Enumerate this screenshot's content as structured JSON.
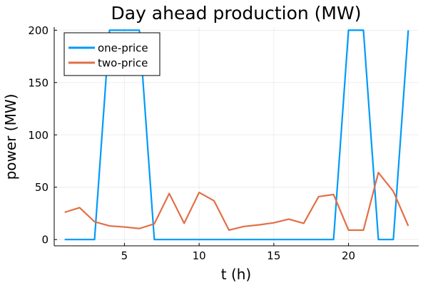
{
  "chart_data": {
    "type": "line",
    "title": "Day ahead production (MW)",
    "xlabel": "t (h)",
    "ylabel": "power (MW)",
    "xlim": [
      0.3,
      24.7
    ],
    "ylim": [
      -6,
      203
    ],
    "xticks": [
      5,
      10,
      15,
      20
    ],
    "yticks": [
      0,
      50,
      100,
      150,
      200
    ],
    "grid": true,
    "legend_position": "top-left",
    "x": [
      1,
      2,
      3,
      4,
      5,
      6,
      7,
      8,
      9,
      10,
      11,
      12,
      13,
      14,
      15,
      16,
      17,
      18,
      19,
      20,
      21,
      22,
      23,
      24
    ],
    "series": [
      {
        "name": "one-price",
        "color": "#009af9",
        "values": [
          0,
          0,
          0,
          200,
          200,
          200,
          0,
          0,
          0,
          0,
          0,
          0,
          0,
          0,
          0,
          0,
          0,
          0,
          0,
          200,
          200,
          0,
          0,
          200
        ]
      },
      {
        "name": "two-price",
        "color": "#e26f46",
        "values": [
          26,
          30.5,
          17,
          13,
          12,
          10.5,
          15,
          44,
          15.5,
          45,
          37,
          9,
          12.5,
          14,
          16,
          19.5,
          15.5,
          41,
          43,
          9,
          9,
          64,
          46,
          13
        ]
      }
    ]
  }
}
